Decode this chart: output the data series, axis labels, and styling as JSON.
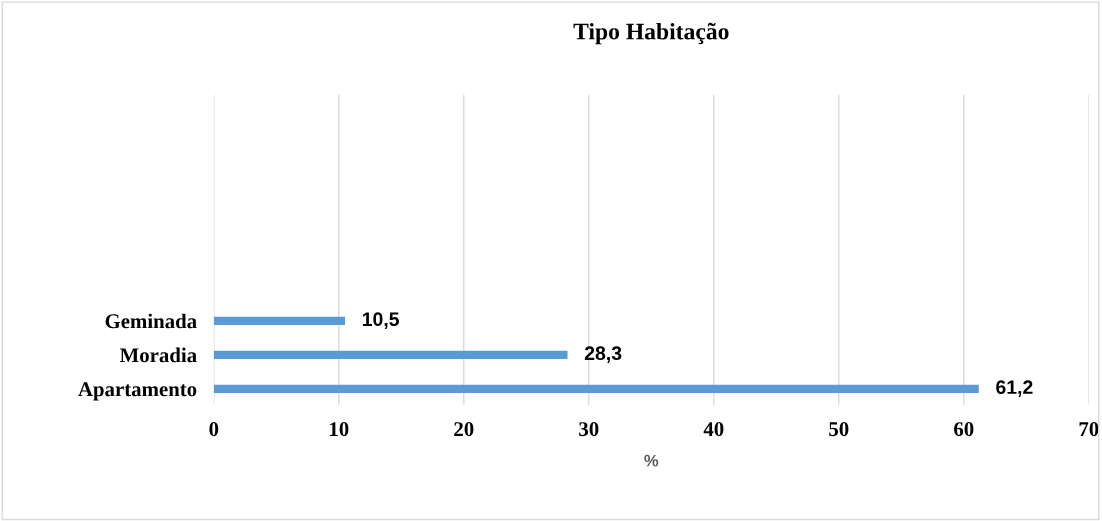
{
  "chart_data": {
    "type": "bar",
    "orientation": "horizontal",
    "title": "Tipo Habitação",
    "xlabel": "%",
    "categories": [
      "Geminada",
      "Moradia",
      "Apartamento"
    ],
    "values": [
      10.5,
      28.3,
      61.2
    ],
    "value_labels": [
      "10,5",
      "28,3",
      "61,2"
    ],
    "color": "#5b9bd5",
    "xlim": [
      0,
      70
    ],
    "xticks": [
      0,
      10,
      20,
      30,
      40,
      50,
      60,
      70
    ],
    "grid": "x",
    "legend": false
  }
}
